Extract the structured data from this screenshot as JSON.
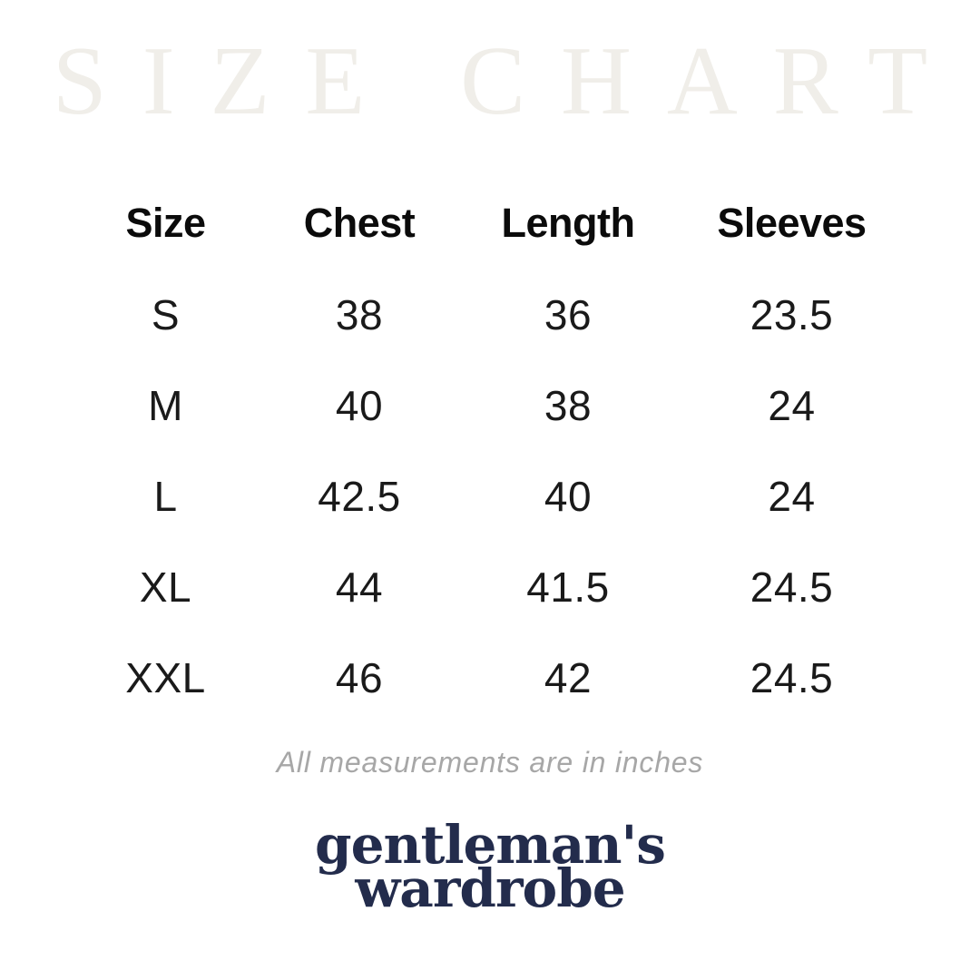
{
  "watermark": "SIZE CHART",
  "table": {
    "headers": [
      "Size",
      "Chest",
      "Length",
      "Sleeves"
    ],
    "rows": [
      {
        "size": "S",
        "chest": "38",
        "length": "36",
        "sleeves": "23.5"
      },
      {
        "size": "M",
        "chest": "40",
        "length": "38",
        "sleeves": "24"
      },
      {
        "size": "L",
        "chest": "42.5",
        "length": "40",
        "sleeves": "24"
      },
      {
        "size": "XL",
        "chest": "44",
        "length": "41.5",
        "sleeves": "24.5"
      },
      {
        "size": "XXL",
        "chest": "46",
        "length": "42",
        "sleeves": "24.5"
      }
    ]
  },
  "note": "All measurements are in inches",
  "brand": {
    "line1": "gentleman's",
    "line2": "wardrobe"
  },
  "colors": {
    "bg": "#ffffff",
    "watermark": "#f0eee9",
    "heading": "#0b0b0b",
    "body-text": "#1a1a1a",
    "note": "#a7a7a7",
    "navy": "#232c4c"
  },
  "chart_data": {
    "type": "table",
    "title": "SIZE CHART",
    "columns": [
      "Size",
      "Chest",
      "Length",
      "Sleeves"
    ],
    "units": "inches",
    "rows": [
      [
        "S",
        38,
        36,
        23.5
      ],
      [
        "M",
        40,
        38,
        24
      ],
      [
        "L",
        42.5,
        40,
        24
      ],
      [
        "XL",
        44,
        41.5,
        24.5
      ],
      [
        "XXL",
        46,
        42,
        24.5
      ]
    ],
    "footnote": "All measurements are in inches",
    "brand": "gentleman's wardrobe"
  }
}
